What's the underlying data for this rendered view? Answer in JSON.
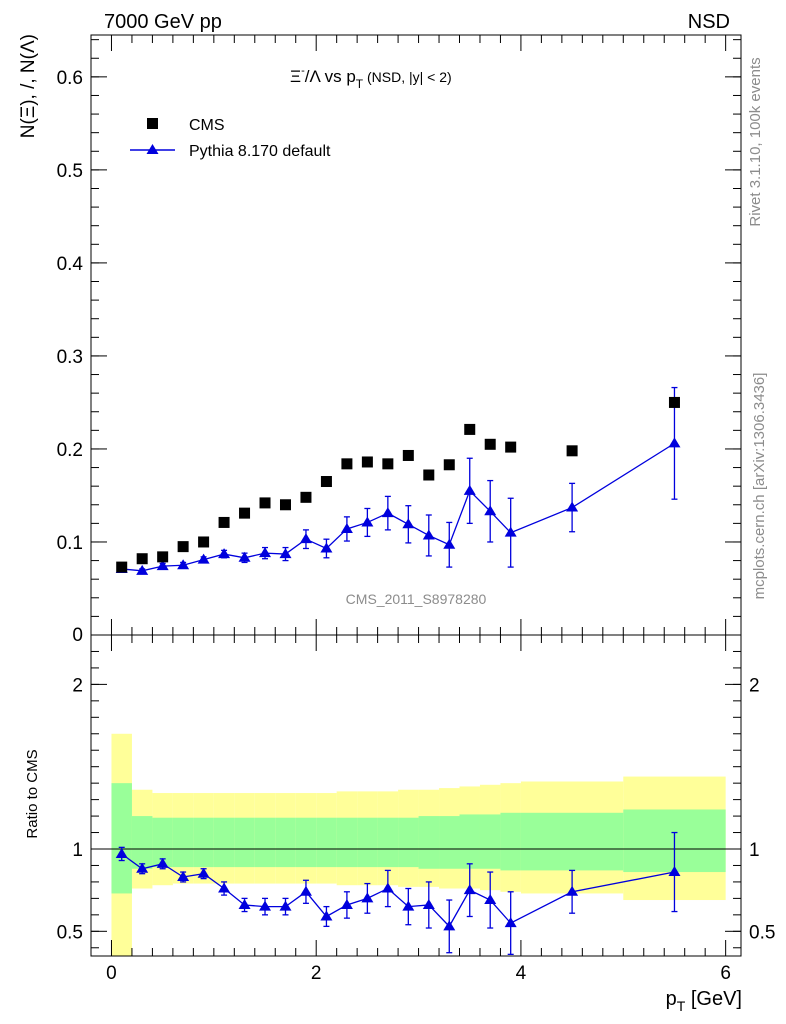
{
  "header": {
    "left": "7000 GeV pp",
    "right": "NSD"
  },
  "side_labels": {
    "rivet": "Rivet 3.1.10,  100k events",
    "mcplots": "mcplots.cern.ch [arXiv:1306.3436]"
  },
  "watermark": "CMS_2011_S8978280",
  "colors": {
    "cms": "#000000",
    "pythia": "#0000dd",
    "band_yellow": "#ffff99",
    "band_green": "#99ff99"
  },
  "chart_data": [
    {
      "type": "scatter",
      "title_parts": {
        "main": "Ξ",
        "sup": "-",
        "mid": "/Λ  vs p",
        "sub": "T",
        "tail": " (NSD, |y| < 2)"
      },
      "ylabel": "N(Ξ), /, N(Λ)",
      "xlabel": "p_T [GeV]",
      "xlim": [
        -0.2,
        6.15
      ],
      "ylim": [
        0,
        0.645
      ],
      "yticks": [
        0.1,
        0.2,
        0.3,
        0.4,
        0.5,
        0.6
      ],
      "ytick_labels": [
        "0.1",
        "0.2",
        "0.3",
        "0.4",
        "0.5",
        "0.6"
      ],
      "zero_label": "0",
      "legend": [
        {
          "name": "CMS",
          "marker": "square"
        },
        {
          "name": "Pythia 8.170 default",
          "marker": "triangle"
        }
      ],
      "series": [
        {
          "name": "CMS",
          "x": [
            0.1,
            0.3,
            0.5,
            0.7,
            0.9,
            1.1,
            1.3,
            1.5,
            1.7,
            1.9,
            2.1,
            2.3,
            2.5,
            2.7,
            2.9,
            3.1,
            3.3,
            3.5,
            3.7,
            3.9,
            4.5,
            5.5
          ],
          "y": [
            0.073,
            0.082,
            0.084,
            0.095,
            0.1,
            0.121,
            0.131,
            0.142,
            0.14,
            0.148,
            0.165,
            0.184,
            0.186,
            0.184,
            0.193,
            0.172,
            0.183,
            0.221,
            0.205,
            0.202,
            0.198,
            0.25
          ]
        },
        {
          "name": "Pythia 8.170 default",
          "x": [
            0.1,
            0.3,
            0.5,
            0.7,
            0.9,
            1.1,
            1.3,
            1.5,
            1.7,
            1.9,
            2.1,
            2.3,
            2.5,
            2.7,
            2.9,
            3.1,
            3.3,
            3.5,
            3.7,
            3.9,
            4.5,
            5.5
          ],
          "y": [
            0.071,
            0.069,
            0.074,
            0.075,
            0.081,
            0.087,
            0.083,
            0.088,
            0.087,
            0.103,
            0.093,
            0.114,
            0.121,
            0.131,
            0.119,
            0.107,
            0.097,
            0.155,
            0.133,
            0.11,
            0.137,
            0.206
          ],
          "err": [
            0.002,
            0.002,
            0.003,
            0.003,
            0.003,
            0.004,
            0.005,
            0.006,
            0.007,
            0.01,
            0.01,
            0.013,
            0.015,
            0.018,
            0.02,
            0.022,
            0.024,
            0.035,
            0.033,
            0.037,
            0.026,
            0.06
          ]
        }
      ]
    },
    {
      "type": "scatter",
      "ylabel": "Ratio to CMS",
      "xlabel": "p_T [GeV]",
      "xlim": [
        -0.2,
        6.15
      ],
      "ylim": [
        0.35,
        2.3
      ],
      "yticks": [
        0.5,
        1,
        2
      ],
      "ytick_labels": [
        "0.5",
        "1",
        "2"
      ],
      "xticks": [
        0,
        2,
        4,
        6
      ],
      "xtick_labels": [
        "0",
        "2",
        "4",
        "6"
      ],
      "reference_line": 1,
      "bands": {
        "edges": [
          0.0,
          0.2,
          0.4,
          0.6,
          0.8,
          1.0,
          1.2,
          1.4,
          1.6,
          1.8,
          2.0,
          2.2,
          2.4,
          2.6,
          2.8,
          3.0,
          3.2,
          3.4,
          3.6,
          3.8,
          4.0,
          5.0,
          6.0
        ],
        "yellow_lo": [
          0.35,
          0.76,
          0.78,
          0.79,
          0.79,
          0.79,
          0.79,
          0.79,
          0.79,
          0.79,
          0.79,
          0.78,
          0.78,
          0.78,
          0.77,
          0.77,
          0.76,
          0.76,
          0.75,
          0.74,
          0.73,
          0.69
        ],
        "yellow_hi": [
          1.7,
          1.36,
          1.34,
          1.34,
          1.34,
          1.34,
          1.34,
          1.34,
          1.34,
          1.34,
          1.34,
          1.35,
          1.35,
          1.35,
          1.36,
          1.36,
          1.37,
          1.38,
          1.39,
          1.4,
          1.41,
          1.44
        ],
        "green_lo": [
          0.73,
          0.88,
          0.89,
          0.89,
          0.89,
          0.89,
          0.89,
          0.89,
          0.89,
          0.89,
          0.89,
          0.89,
          0.89,
          0.89,
          0.89,
          0.88,
          0.88,
          0.88,
          0.88,
          0.87,
          0.87,
          0.86
        ],
        "green_hi": [
          1.4,
          1.2,
          1.19,
          1.19,
          1.19,
          1.19,
          1.19,
          1.19,
          1.19,
          1.19,
          1.19,
          1.19,
          1.19,
          1.19,
          1.19,
          1.2,
          1.2,
          1.21,
          1.21,
          1.22,
          1.22,
          1.24
        ]
      },
      "series": [
        {
          "name": "Pythia 8.170 default",
          "x": [
            0.1,
            0.3,
            0.5,
            0.7,
            0.9,
            1.1,
            1.3,
            1.5,
            1.7,
            1.9,
            2.1,
            2.3,
            2.5,
            2.7,
            2.9,
            3.1,
            3.3,
            3.5,
            3.7,
            3.9,
            4.5,
            5.5
          ],
          "y": [
            0.97,
            0.88,
            0.91,
            0.83,
            0.85,
            0.76,
            0.66,
            0.65,
            0.65,
            0.74,
            0.59,
            0.66,
            0.7,
            0.76,
            0.65,
            0.66,
            0.53,
            0.75,
            0.69,
            0.55,
            0.74,
            0.86
          ],
          "err": [
            0.04,
            0.03,
            0.03,
            0.03,
            0.03,
            0.04,
            0.04,
            0.05,
            0.05,
            0.07,
            0.06,
            0.08,
            0.09,
            0.11,
            0.11,
            0.14,
            0.16,
            0.16,
            0.17,
            0.19,
            0.13,
            0.24
          ]
        }
      ]
    }
  ]
}
